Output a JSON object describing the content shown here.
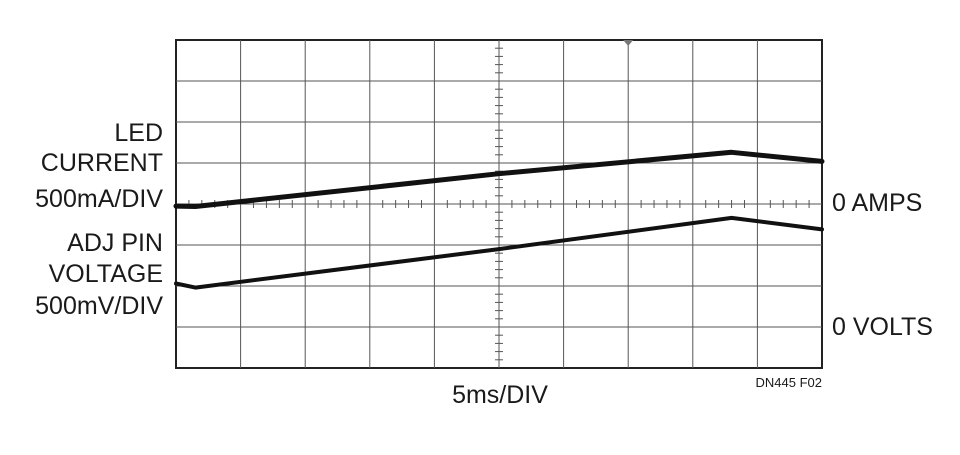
{
  "chart_data": {
    "type": "line",
    "title": "",
    "x_scale_label": "5ms/DIV",
    "figure_id": "DN445 F02",
    "x_divisions": 10,
    "y_divisions": 8,
    "grid": true,
    "series": [
      {
        "name": "LED CURRENT",
        "label_lines": [
          "LED",
          "CURRENT",
          "500mA/DIV"
        ],
        "zero_label": "0 AMPS",
        "zero_div": 0,
        "points": [
          [
            0,
            -0.05
          ],
          [
            0.3,
            -0.06
          ],
          [
            5,
            0.74
          ],
          [
            8.6,
            1.26
          ],
          [
            10,
            1.04
          ]
        ]
      },
      {
        "name": "ADJ PIN VOLTAGE",
        "label_lines": [
          "ADJ PIN",
          "VOLTAGE",
          "500mV/DIV"
        ],
        "zero_label": "0 VOLTS",
        "zero_div": -2,
        "points": [
          [
            0,
            -1.94
          ],
          [
            0.3,
            -2.04
          ],
          [
            5,
            -1.1
          ],
          [
            8.6,
            -0.34
          ],
          [
            10,
            -0.62
          ]
        ]
      }
    ]
  }
}
